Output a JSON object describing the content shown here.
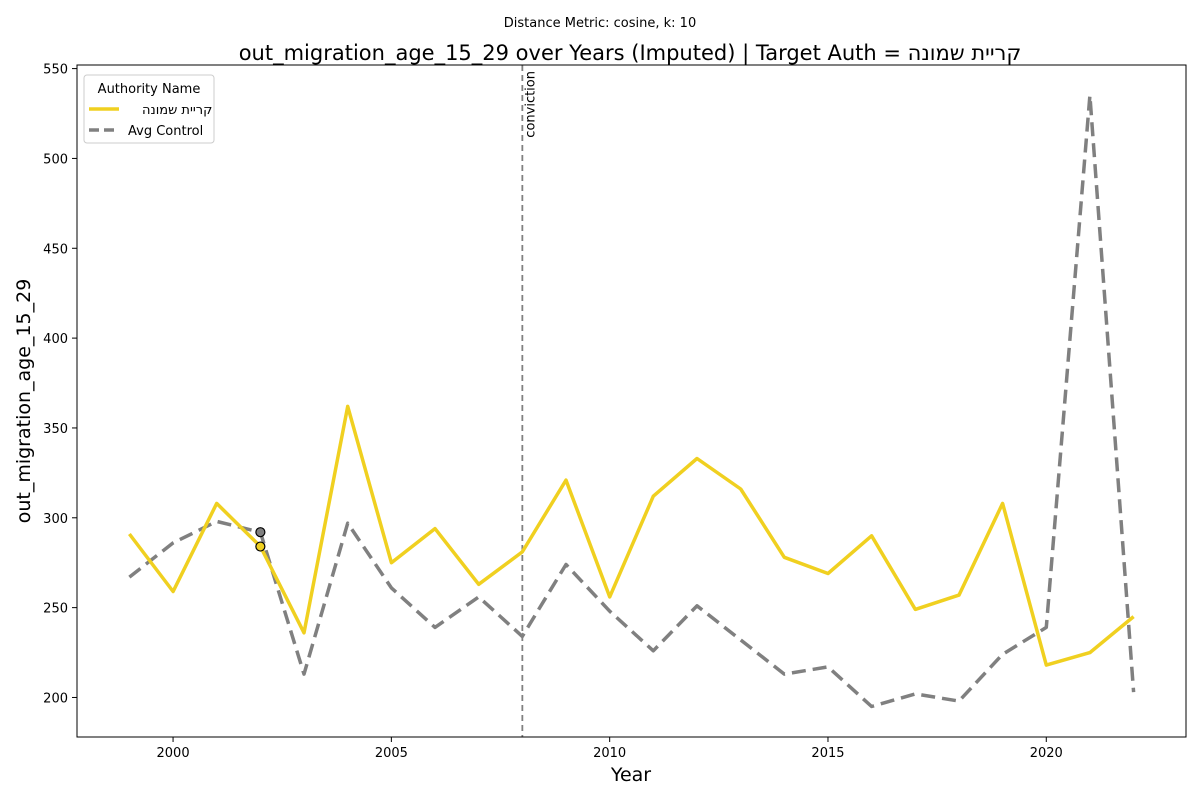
{
  "chart_data": {
    "type": "line",
    "subtitle": "Distance Metric: cosine, k: 10",
    "title": "out_migration_age_15_29 over Years (Imputed) | Target Auth = קריית שמונה",
    "xlabel": "Year",
    "ylabel": "out_migration_age_15_29",
    "xlim": [
      1997.8,
      2023.2
    ],
    "ylim": [
      178,
      552
    ],
    "xticks": [
      2000,
      2005,
      2010,
      2015,
      2020
    ],
    "yticks": [
      200,
      250,
      300,
      350,
      400,
      450,
      500,
      550
    ],
    "grid": false,
    "legend": {
      "title": "Authority Name",
      "placement": "top-left"
    },
    "x": [
      1999,
      2000,
      2001,
      2002,
      2003,
      2004,
      2005,
      2006,
      2007,
      2008,
      2009,
      2010,
      2011,
      2012,
      2013,
      2014,
      2015,
      2016,
      2017,
      2018,
      2019,
      2020,
      2021,
      2022
    ],
    "series": [
      {
        "name": "קריית שמונה",
        "color": "#f0d020",
        "style": "solid",
        "values": [
          291,
          259,
          308,
          284,
          236,
          362,
          275,
          294,
          263,
          281,
          321,
          256,
          312,
          333,
          316,
          278,
          269,
          290,
          249,
          257,
          308,
          218,
          225,
          245
        ]
      },
      {
        "name": "Avg Control",
        "color": "#808080",
        "style": "dashed",
        "values": [
          267,
          286,
          298,
          292,
          213,
          297,
          261,
          239,
          256,
          234,
          274,
          248,
          226,
          251,
          232,
          213,
          217,
          195,
          202,
          198,
          224,
          239,
          535,
          203
        ]
      }
    ],
    "markers": [
      {
        "series": 0,
        "x": 2002,
        "y": 284,
        "color": "#f0d020"
      },
      {
        "series": 1,
        "x": 2002,
        "y": 292,
        "color": "#808080"
      }
    ],
    "annotations": [
      {
        "type": "vline",
        "x": 2008,
        "label": "conviction",
        "color": "#808080"
      }
    ]
  }
}
